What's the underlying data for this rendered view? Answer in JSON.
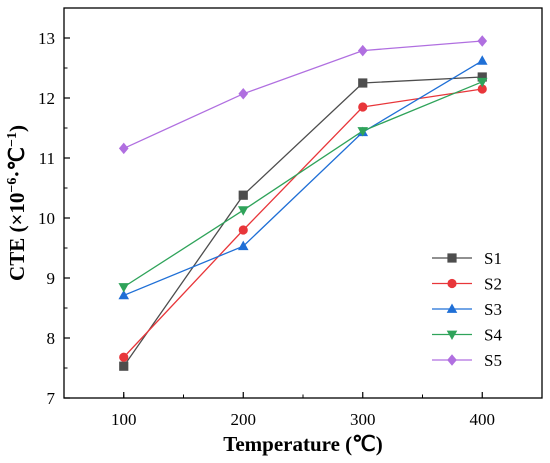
{
  "chart_data": {
    "type": "line",
    "xlabel": "Temperature (℃)",
    "ylabel_main": "CTE (×10",
    "ylabel_exp": "−6",
    "ylabel_unit": "·℃",
    "ylabel_exp2": "−1",
    "ylabel_close": ")",
    "x": [
      100,
      200,
      300,
      400
    ],
    "xlim": [
      50,
      450
    ],
    "ylim": [
      7,
      13.5
    ],
    "x_ticks": [
      "100",
      "200",
      "300",
      "400"
    ],
    "y_ticks": [
      "7",
      "8",
      "9",
      "10",
      "11",
      "12",
      "13"
    ],
    "grid": false,
    "legend_position": "lower-right",
    "series": [
      {
        "name": "S1",
        "color": "#4d4d4d",
        "marker": "square",
        "values": [
          7.53,
          10.38,
          12.25,
          12.35
        ]
      },
      {
        "name": "S2",
        "color": "#e8363a",
        "marker": "circle",
        "values": [
          7.68,
          9.8,
          11.85,
          12.15
        ]
      },
      {
        "name": "S3",
        "color": "#1f6fd6",
        "marker": "triangle-up",
        "values": [
          8.71,
          9.53,
          11.43,
          12.62
        ]
      },
      {
        "name": "S4",
        "color": "#2fa35a",
        "marker": "triangle-down",
        "values": [
          8.85,
          10.13,
          11.45,
          12.27
        ]
      },
      {
        "name": "S5",
        "color": "#b06fe0",
        "marker": "diamond",
        "values": [
          11.16,
          12.07,
          12.79,
          12.95
        ]
      }
    ]
  }
}
